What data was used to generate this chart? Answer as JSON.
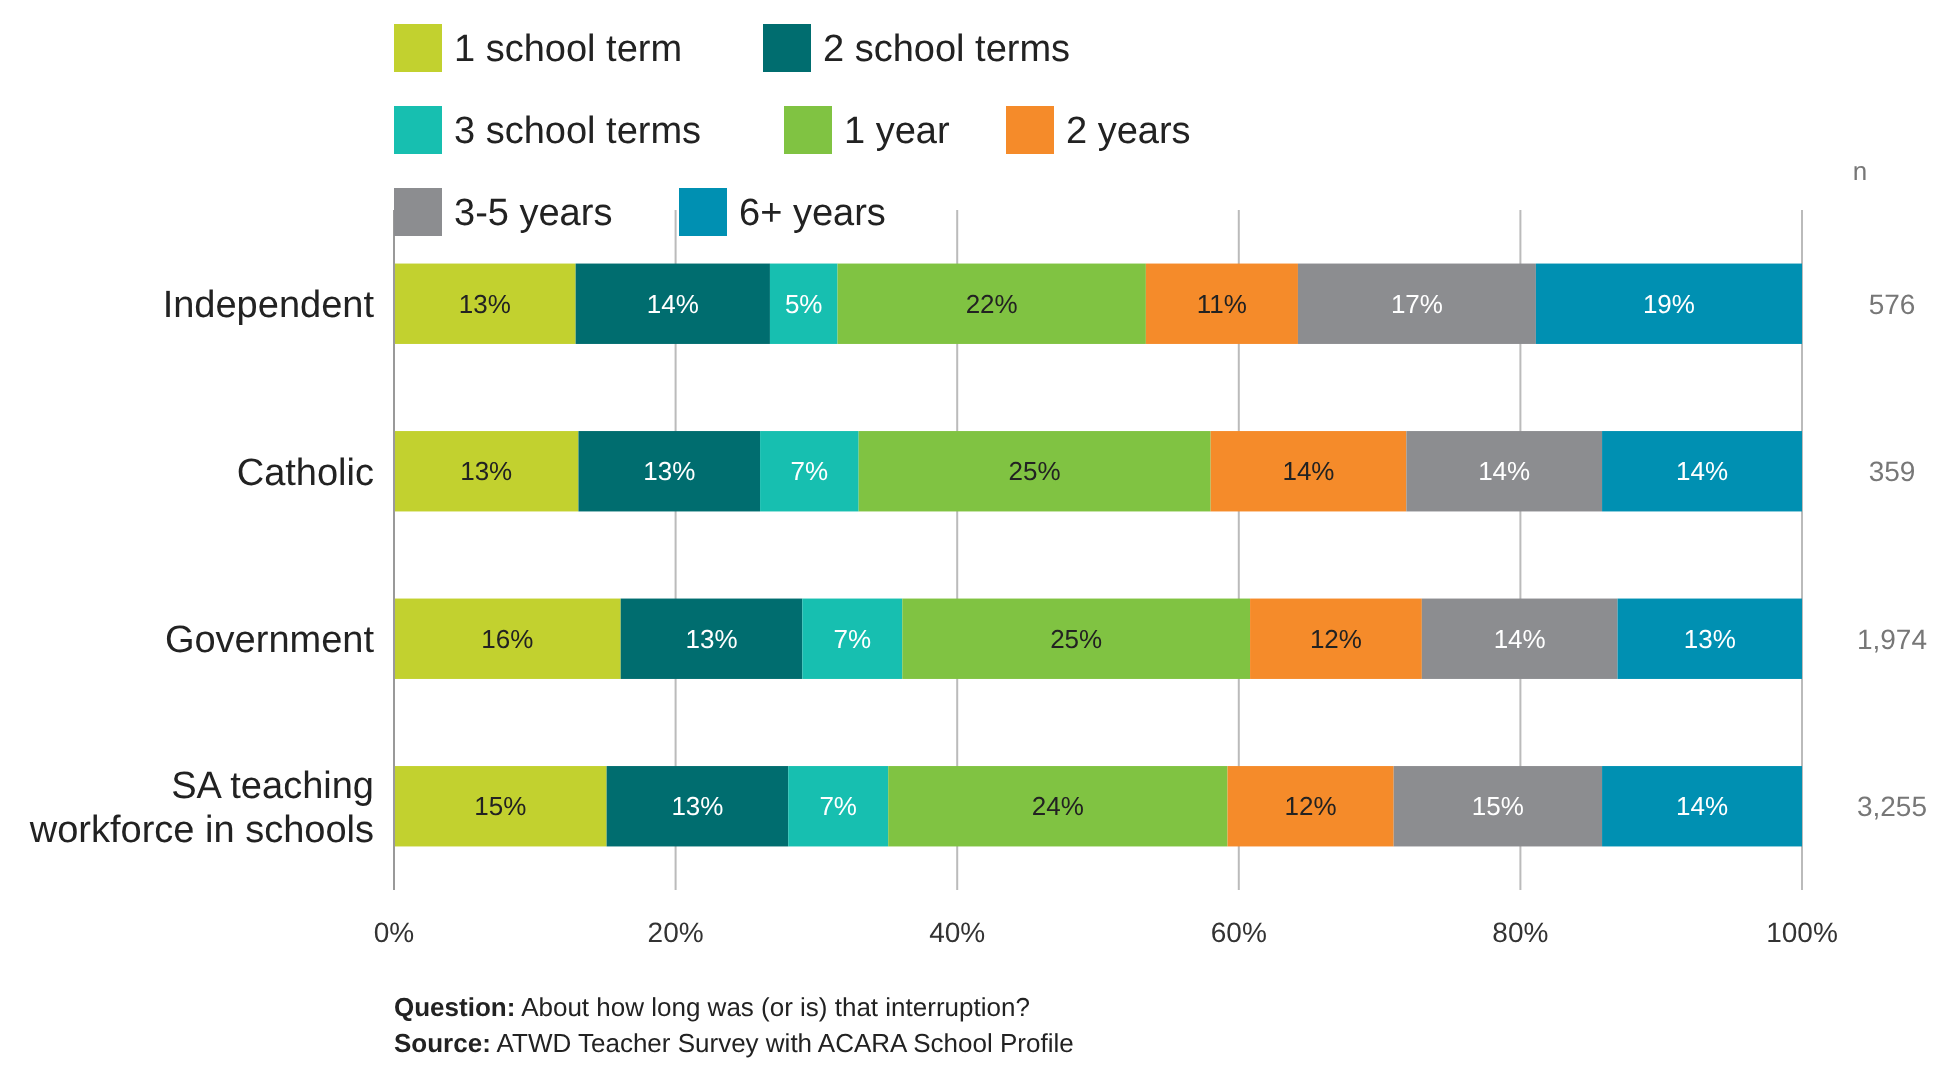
{
  "chart_data": {
    "type": "bar",
    "orientation": "horizontal",
    "stacked": true,
    "categories": [
      "Independent",
      "Catholic",
      "Government",
      "SA teaching\nworkforce in schools"
    ],
    "series": [
      {
        "name": "1 school term",
        "color": "#c2d12f",
        "values": [
          12.9,
          13.1,
          16.1,
          15.1
        ],
        "value_labels": [
          "13%",
          "13%",
          "16%",
          "15%"
        ]
      },
      {
        "name": "2 school terms",
        "color": "#006d6f",
        "values": [
          13.8,
          12.9,
          12.9,
          12.9
        ],
        "value_labels": [
          "14%",
          "13%",
          "13%",
          "13%"
        ]
      },
      {
        "name": "3 school terms",
        "color": "#17bfb0",
        "values": [
          4.8,
          7.0,
          7.1,
          7.1
        ],
        "value_labels": [
          "5%",
          "7%",
          "7%",
          "7%"
        ]
      },
      {
        "name": "1 year",
        "color": "#80c342",
        "values": [
          21.9,
          25.0,
          24.7,
          24.1
        ],
        "value_labels": [
          "22%",
          "25%",
          "25%",
          "24%"
        ]
      },
      {
        "name": "2 years",
        "color": "#f58b2a",
        "values": [
          10.8,
          13.9,
          12.2,
          11.8
        ],
        "value_labels": [
          "11%",
          "14%",
          "12%",
          "12%"
        ]
      },
      {
        "name": "3-5 years",
        "color": "#8c8d90",
        "values": [
          16.9,
          13.9,
          13.9,
          14.8
        ],
        "value_labels": [
          "17%",
          "14%",
          "14%",
          "15%"
        ]
      },
      {
        "name": "6+ years",
        "color": "#0090b2",
        "values": [
          18.9,
          14.2,
          13.1,
          14.2
        ],
        "value_labels": [
          "19%",
          "14%",
          "13%",
          "14%"
        ]
      }
    ],
    "xlim": [
      0,
      100
    ],
    "xticks": [
      {
        "value": 0,
        "label": "0%"
      },
      {
        "value": 20,
        "label": "20%"
      },
      {
        "value": 40,
        "label": "40%"
      },
      {
        "value": 60,
        "label": "60%"
      },
      {
        "value": 80,
        "label": "80%"
      },
      {
        "value": 100,
        "label": "100%"
      }
    ],
    "grid": "x",
    "legend": "top",
    "annotations": [
      "n",
      "576",
      "359",
      "1,974",
      "3,255",
      "Question: About how long was (or is) that interruption?",
      "Source: ATWD Teacher Survey with ACARA School Profile"
    ]
  }
}
